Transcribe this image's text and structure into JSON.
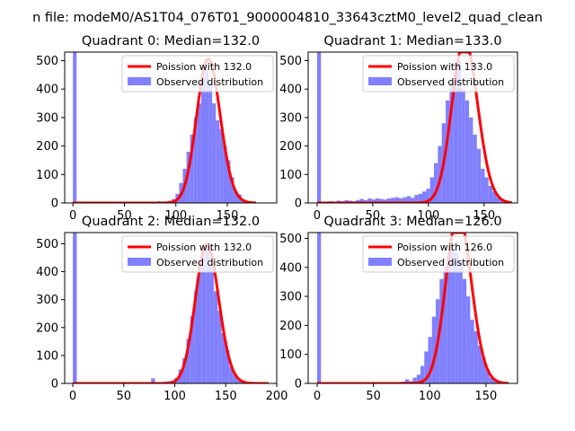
{
  "suptitle": "n file: modeM0/AS1T04_076T01_9000004810_33643cztM0_level2_quad_clean",
  "colors": {
    "fit_line": "#ff0000",
    "hist_fill": "#8080ff",
    "axes": "#000000"
  },
  "chart_data": [
    {
      "type": "bar",
      "title": "Quadrant 0: Median=132.0",
      "median": 132.0,
      "xlim": [
        -8,
        198
      ],
      "ylim": [
        0,
        530
      ],
      "xticks": [
        0,
        50,
        100,
        150
      ],
      "yticks": [
        0,
        100,
        200,
        300,
        400,
        500
      ],
      "legend": {
        "loc": "upper right",
        "fit_label": "Poission with 132.0",
        "hist_label": "Observed distribution"
      },
      "bin_edges": [
        0,
        3.56,
        7.12,
        10.68,
        14.24,
        17.8,
        21.36,
        24.92,
        28.48,
        32.04,
        35.6,
        39.16,
        42.72,
        46.28,
        49.84,
        53.4,
        56.96,
        60.52,
        64.08,
        67.64,
        71.2,
        74.76,
        78.32,
        81.88,
        85.44,
        89.0,
        92.56,
        96.12,
        99.68,
        103.24,
        106.8,
        110.36,
        113.92,
        117.48,
        121.04,
        124.6,
        128.16,
        131.72,
        135.28,
        138.84,
        142.4,
        145.96,
        149.52,
        153.08,
        156.64,
        160.2,
        163.76,
        167.32,
        170.88,
        174.44,
        178.0
      ],
      "counts": [
        530,
        0,
        0,
        0,
        0,
        0,
        0,
        0,
        0,
        0,
        0,
        0,
        0,
        0,
        0,
        0,
        0,
        0,
        0,
        0,
        0,
        2,
        4,
        6,
        4,
        5,
        8,
        14,
        32,
        70,
        120,
        180,
        240,
        300,
        350,
        440,
        470,
        420,
        350,
        290,
        260,
        200,
        150,
        90,
        40,
        30,
        12,
        8,
        2,
        0
      ]
    },
    {
      "type": "bar",
      "title": "Quadrant 1: Median=133.0",
      "median": 133.0,
      "xlim": [
        -8,
        180
      ],
      "ylim": [
        0,
        530
      ],
      "xticks": [
        0,
        50,
        100,
        150
      ],
      "yticks": [
        0,
        100,
        200,
        300,
        400,
        500
      ],
      "legend": {
        "loc": "upper right",
        "fit_label": "Poission with 133.0",
        "hist_label": "Observed distribution"
      },
      "bin_edges": [
        0,
        3.5,
        7.0,
        10.5,
        14.0,
        17.5,
        21.0,
        24.5,
        28.0,
        31.5,
        35.0,
        38.5,
        42.0,
        45.5,
        49.0,
        52.5,
        56.0,
        59.5,
        63.0,
        66.5,
        70.0,
        73.5,
        77.0,
        80.5,
        84.0,
        87.5,
        91.0,
        94.5,
        98.0,
        101.5,
        105.0,
        108.5,
        112.0,
        115.5,
        119.0,
        122.5,
        126.0,
        129.5,
        133.0,
        136.5,
        140.0,
        143.5,
        147.0,
        150.5,
        154.0,
        157.5,
        161.0,
        164.5,
        168.0,
        171.5,
        175.0
      ],
      "counts": [
        530,
        0,
        4,
        6,
        4,
        8,
        6,
        10,
        8,
        6,
        10,
        14,
        10,
        16,
        12,
        16,
        14,
        12,
        16,
        18,
        20,
        16,
        20,
        24,
        18,
        28,
        32,
        40,
        50,
        90,
        140,
        200,
        280,
        360,
        420,
        470,
        500,
        400,
        360,
        300,
        240,
        190,
        120,
        90,
        60,
        40,
        20,
        10,
        4,
        2
      ]
    },
    {
      "type": "bar",
      "title": "Quadrant 2: Median=132.0",
      "median": 132.0,
      "xlim": [
        -8,
        200
      ],
      "ylim": [
        0,
        540
      ],
      "xticks": [
        0,
        50,
        100,
        150,
        200
      ],
      "yticks": [
        0,
        100,
        200,
        300,
        400,
        500
      ],
      "legend": {
        "loc": "upper right",
        "fit_label": "Poission with 132.0",
        "hist_label": "Observed distribution"
      },
      "bin_edges": [
        0,
        3.84,
        7.68,
        11.52,
        15.36,
        19.2,
        23.04,
        26.88,
        30.72,
        34.56,
        38.4,
        42.24,
        46.08,
        49.92,
        53.76,
        57.6,
        61.44,
        65.28,
        69.12,
        72.96,
        76.8,
        80.64,
        84.48,
        88.32,
        92.16,
        96.0,
        99.84,
        103.68,
        107.52,
        111.36,
        115.2,
        119.04,
        122.88,
        126.72,
        130.56,
        134.4,
        138.24,
        142.08,
        145.92,
        149.76,
        153.6,
        157.44,
        161.28,
        165.12,
        168.96,
        172.8,
        176.64,
        180.48,
        184.32,
        188.16,
        192.0
      ],
      "counts": [
        540,
        0,
        0,
        0,
        0,
        0,
        0,
        0,
        0,
        0,
        0,
        0,
        0,
        0,
        0,
        0,
        0,
        0,
        0,
        0,
        18,
        4,
        4,
        6,
        8,
        10,
        20,
        50,
        90,
        160,
        240,
        330,
        420,
        470,
        490,
        420,
        330,
        260,
        180,
        120,
        60,
        30,
        12,
        4,
        2,
        0,
        0,
        0,
        0,
        0
      ]
    },
    {
      "type": "bar",
      "title": "Quadrant 3: Median=126.0",
      "median": 126.0,
      "xlim": [
        -8,
        178
      ],
      "ylim": [
        0,
        520
      ],
      "xticks": [
        0,
        50,
        100,
        150
      ],
      "yticks": [
        0,
        100,
        200,
        300,
        400,
        500
      ],
      "legend": {
        "loc": "upper right",
        "fit_label": "Poission with 126.0",
        "hist_label": "Observed distribution"
      },
      "bin_edges": [
        0,
        3.4,
        6.8,
        10.2,
        13.6,
        17.0,
        20.4,
        23.8,
        27.2,
        30.6,
        34.0,
        37.4,
        40.8,
        44.2,
        47.6,
        51.0,
        54.4,
        57.8,
        61.2,
        64.6,
        68.0,
        71.4,
        74.8,
        78.2,
        81.6,
        85.0,
        88.4,
        91.8,
        95.2,
        98.6,
        102.0,
        105.4,
        108.8,
        112.2,
        115.6,
        119.0,
        122.4,
        125.8,
        129.2,
        132.6,
        136.0,
        139.4,
        142.8,
        146.2,
        149.6,
        153.0,
        156.4,
        159.8,
        163.2,
        166.6,
        170.0
      ],
      "counts": [
        520,
        0,
        0,
        0,
        0,
        0,
        0,
        0,
        0,
        0,
        0,
        0,
        0,
        0,
        0,
        0,
        0,
        0,
        0,
        0,
        0,
        4,
        6,
        14,
        8,
        20,
        30,
        60,
        110,
        160,
        230,
        290,
        360,
        400,
        440,
        470,
        450,
        420,
        360,
        300,
        220,
        180,
        130,
        90,
        50,
        20,
        10,
        4,
        2,
        0
      ]
    }
  ]
}
